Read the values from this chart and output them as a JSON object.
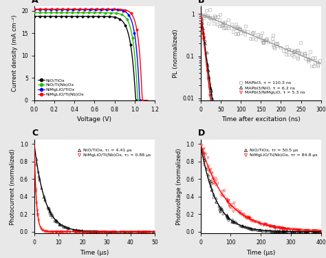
{
  "panel_A": {
    "label": "A",
    "xlabel": "Voltage (V)",
    "ylabel": "Current density (mA cm⁻²)",
    "xlim": [
      0,
      1.2
    ],
    "ylim": [
      0,
      21
    ],
    "curves": [
      {
        "label": "NiO/TiOx",
        "color": "black",
        "jsc": 18.8,
        "voc": 1.01,
        "n": 1.8
      },
      {
        "label": "NiO/Ti(Nb)Ox",
        "color": "#22bb00",
        "jsc": 19.6,
        "voc": 1.03,
        "n": 1.6
      },
      {
        "label": "NiMgLiO/TiOx",
        "color": "blue",
        "jsc": 20.3,
        "voc": 1.05,
        "n": 1.5
      },
      {
        "label": "NiMgLiO/Ti(Nb)Ox",
        "color": "red",
        "jsc": 20.4,
        "voc": 1.075,
        "n": 1.4
      }
    ]
  },
  "panel_B": {
    "label": "B",
    "xlabel": "Time after excitation (ns)",
    "ylabel": "PL (normalized)",
    "xlim": [
      0,
      300
    ],
    "ylim": [
      0.009,
      1.5
    ],
    "curves": [
      {
        "label": "MAPbI3, τ = 110.3 ns",
        "color": "#999999",
        "tau": 110.3,
        "marker": "s",
        "t_max": 300,
        "n_pts": 130
      },
      {
        "label": "MAPbI3/NiO, τ = 6.2 ns",
        "color": "black",
        "tau": 6.2,
        "marker": "^",
        "t_max": 60,
        "n_pts": 50
      },
      {
        "label": "MAPbI3/NiMgLiO, τ = 5.3 ns",
        "color": "red",
        "tau": 5.3,
        "marker": "v",
        "t_max": 60,
        "n_pts": 50
      }
    ]
  },
  "panel_C": {
    "label": "C",
    "xlabel": "Time (μs)",
    "ylabel": "Photocurrent (normalized)",
    "xlim": [
      0,
      50
    ],
    "ylim": [
      -0.02,
      1.05
    ],
    "curves": [
      {
        "label": "NiO/TiOx, τ₁ = 4.41 μs",
        "color": "black",
        "tau": 4.41,
        "marker": "^"
      },
      {
        "label": "NiMgLiO/Ti(Nb)Ox, τ₁ = 0.88 μs",
        "color": "red",
        "tau": 0.88,
        "marker": "v"
      }
    ]
  },
  "panel_D": {
    "label": "D",
    "xlabel": "Time (μs)",
    "ylabel": "Photovoltage (normalized)",
    "xlim": [
      0,
      400
    ],
    "ylim": [
      -0.02,
      1.05
    ],
    "curves": [
      {
        "label": "NiO/TiOx, τr = 50.5 μs",
        "color": "black",
        "tau": 50.5,
        "marker": "^"
      },
      {
        "label": "NiMgLiO/Ti(Nb)Ox, τr = 84.8 μs",
        "color": "red",
        "tau": 84.8,
        "marker": "v"
      }
    ]
  }
}
